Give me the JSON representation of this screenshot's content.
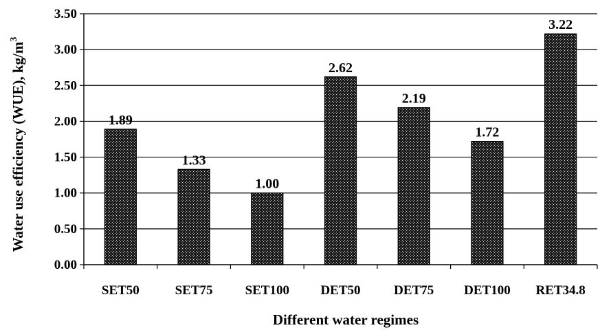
{
  "chart_data": {
    "type": "bar",
    "categories": [
      "SET50",
      "SET75",
      "SET100",
      "DET50",
      "DET75",
      "DET100",
      "RET34.8"
    ],
    "values": [
      1.89,
      1.33,
      1.0,
      2.62,
      2.19,
      1.72,
      3.22
    ],
    "data_labels": [
      "1.89",
      "1.33",
      "1.00",
      "2.62",
      "2.19",
      "1.72",
      "3.22"
    ],
    "title": "",
    "xlabel": "Different water regimes",
    "ylabel": "Water use efficiency (WUE), kg/m",
    "ylabel_superscript": "3",
    "ylim": [
      0,
      3.5
    ],
    "yticks": [
      "0.00",
      "0.50",
      "1.00",
      "1.50",
      "2.00",
      "2.50",
      "3.00",
      "3.50"
    ],
    "grid": true,
    "legend": "none",
    "bar_pattern": "dotted black"
  }
}
